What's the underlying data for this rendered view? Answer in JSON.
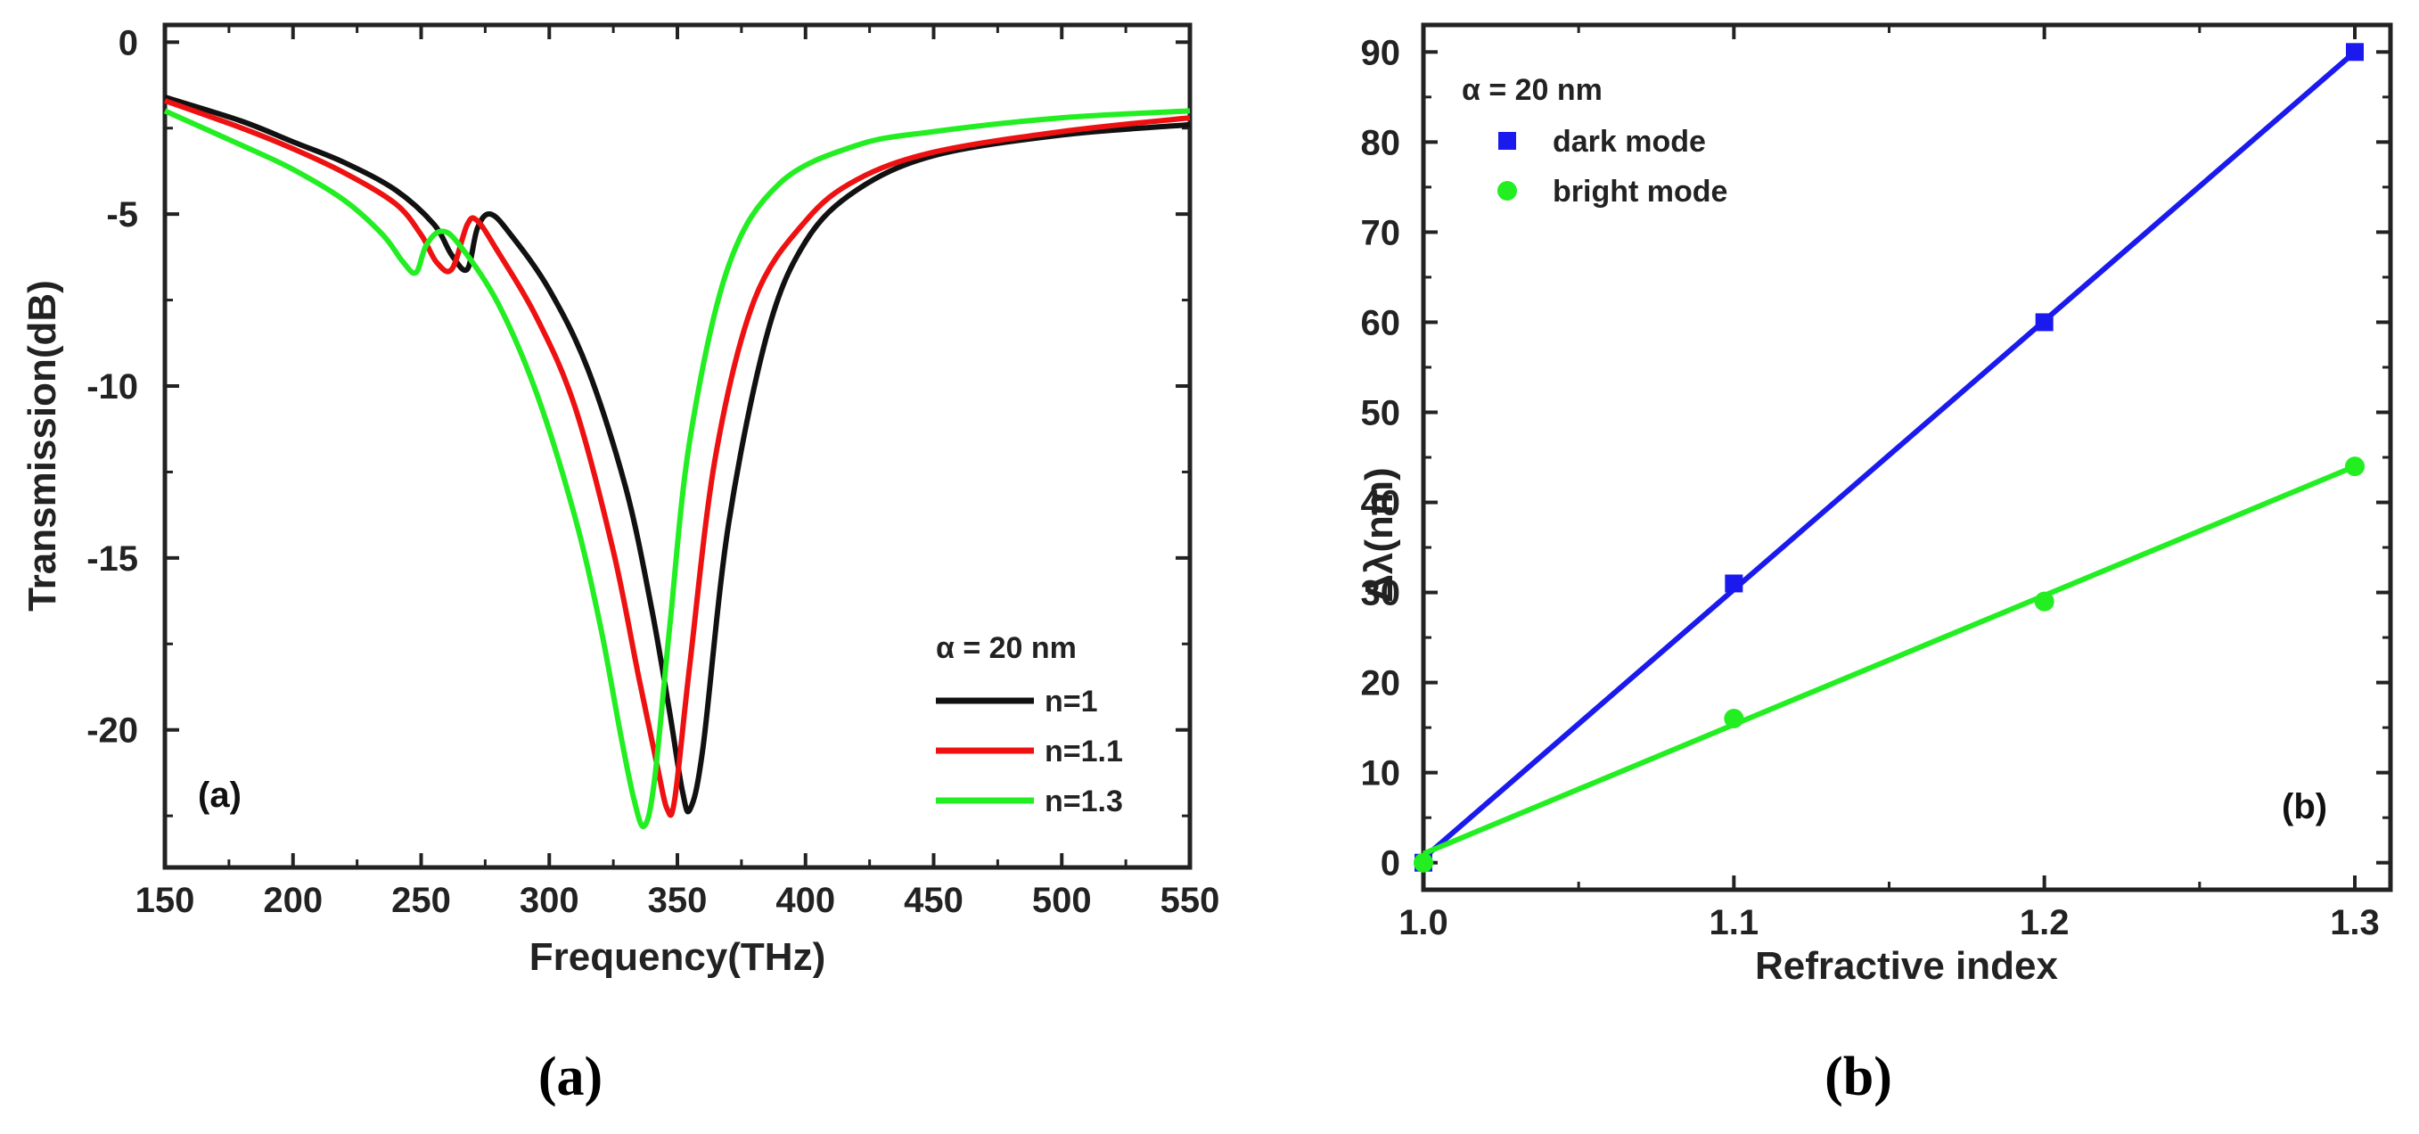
{
  "chart_data": [
    {
      "type": "line",
      "panel_tag": "(a)",
      "caption": "(a)",
      "xlabel": "Frequency(THz)",
      "ylabel": "Transmission(dB)",
      "xlim": [
        150,
        550
      ],
      "ylim": [
        -24,
        0.5
      ],
      "xticks": [
        150,
        200,
        250,
        300,
        350,
        400,
        450,
        500,
        550
      ],
      "yticks": [
        0,
        -5,
        -10,
        -15,
        -20
      ],
      "ytick_labels": [
        "0",
        "-5",
        "-10",
        "-15",
        "-20"
      ],
      "legend_title": "α = 20 nm",
      "series": [
        {
          "name": "n=1",
          "color": "#111111",
          "x": [
            150,
            180,
            200,
            220,
            240,
            255,
            262,
            268,
            272,
            277,
            285,
            300,
            315,
            330,
            340,
            347,
            352,
            355,
            360,
            370,
            385,
            400,
            420,
            450,
            500,
            550
          ],
          "y": [
            -1.6,
            -2.3,
            -2.9,
            -3.5,
            -4.3,
            -5.3,
            -6.2,
            -6.6,
            -5.4,
            -5.0,
            -5.6,
            -7.2,
            -9.5,
            -13.0,
            -16.5,
            -19.5,
            -21.8,
            -22.3,
            -20.5,
            -14.0,
            -8.5,
            -5.8,
            -4.3,
            -3.3,
            -2.7,
            -2.4
          ]
        },
        {
          "name": "n=1.1",
          "color": "#ee1111",
          "x": [
            150,
            180,
            200,
            220,
            240,
            250,
            256,
            262,
            268,
            272,
            280,
            295,
            310,
            325,
            335,
            342,
            346,
            349,
            355,
            365,
            380,
            400,
            420,
            450,
            500,
            550
          ],
          "y": [
            -1.7,
            -2.5,
            -3.1,
            -3.8,
            -4.7,
            -5.6,
            -6.4,
            -6.6,
            -5.3,
            -5.2,
            -6.1,
            -8.0,
            -10.6,
            -14.8,
            -18.5,
            -21.0,
            -22.3,
            -22.0,
            -18.0,
            -12.0,
            -7.5,
            -5.2,
            -4.0,
            -3.2,
            -2.6,
            -2.2
          ]
        },
        {
          "name": "n=1.3",
          "color": "#22ee22",
          "x": [
            150,
            180,
            200,
            220,
            235,
            243,
            248,
            252,
            258,
            265,
            280,
            295,
            310,
            320,
            328,
            333,
            337,
            341,
            347,
            355,
            370,
            390,
            420,
            450,
            500,
            550
          ],
          "y": [
            -2.0,
            -3.0,
            -3.7,
            -4.6,
            -5.6,
            -6.4,
            -6.7,
            -5.9,
            -5.5,
            -5.9,
            -7.6,
            -10.2,
            -13.8,
            -17.0,
            -20.2,
            -22.0,
            -22.8,
            -21.5,
            -17.0,
            -11.5,
            -6.5,
            -4.1,
            -3.0,
            -2.6,
            -2.2,
            -2.0
          ]
        }
      ]
    },
    {
      "type": "scatter",
      "panel_tag": "(b)",
      "caption": "(b)",
      "xlabel": "Refractive index",
      "ylabel": "Δλ(nm)",
      "xlim": [
        1.0,
        1.3
      ],
      "ylim": [
        -3,
        93
      ],
      "xticks": [
        1.0,
        1.1,
        1.2,
        1.3
      ],
      "xtick_labels": [
        "1.0",
        "1.1",
        "1.2",
        "1.3"
      ],
      "yticks": [
        0,
        10,
        20,
        30,
        40,
        50,
        60,
        70,
        80,
        90
      ],
      "legend_title": "α = 20 nm",
      "series": [
        {
          "name": "dark mode",
          "marker": "square",
          "color": "#1a1aee",
          "x": [
            1.0,
            1.1,
            1.2,
            1.3
          ],
          "y": [
            0,
            31,
            60,
            90
          ],
          "fit": {
            "x": [
              1.0,
              1.3
            ],
            "y": [
              0.5,
              90
            ]
          }
        },
        {
          "name": "bright mode",
          "marker": "circle",
          "color": "#22ee22",
          "x": [
            1.0,
            1.1,
            1.2,
            1.3
          ],
          "y": [
            0,
            16,
            29,
            44
          ],
          "fit": {
            "x": [
              1.0,
              1.3
            ],
            "y": [
              1,
              44
            ]
          }
        }
      ]
    }
  ]
}
